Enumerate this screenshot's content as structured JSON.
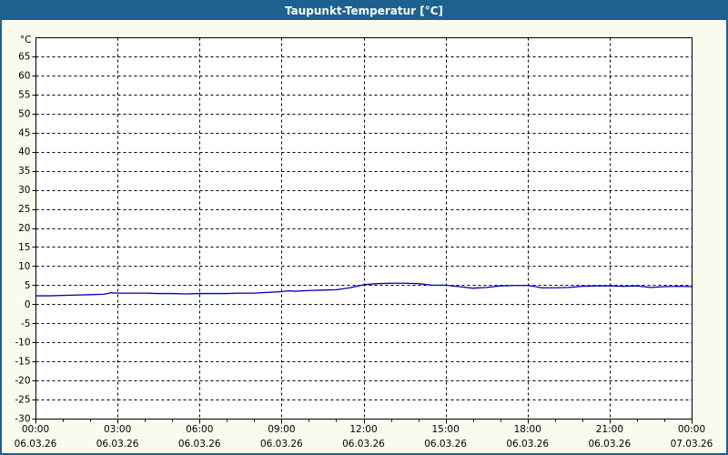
{
  "window": {
    "title": "Taupunkt-Temperatur [°C]"
  },
  "colors": {
    "titlebar_bg": "#1d6190",
    "titlebar_text": "#ffffff",
    "window_bg": "#fbfaee",
    "window_border": "#1d6190",
    "plot_bg": "#ffffff",
    "plot_border": "#000000",
    "grid": "#000000",
    "axis_text": "#000000",
    "line": "#0000b3"
  },
  "chart_data": {
    "type": "line",
    "title": "Taupunkt-Temperatur [°C]",
    "y_unit_label": "°C",
    "grid": "dashed",
    "legend": "none",
    "y_axis": {
      "min": -30,
      "max": 70,
      "tick_step": 5,
      "yticks": [
        -30,
        -25,
        -20,
        -15,
        -10,
        -5,
        0,
        5,
        10,
        15,
        20,
        25,
        30,
        35,
        40,
        45,
        50,
        55,
        60,
        65
      ]
    },
    "x_axis": {
      "min_hours": 0,
      "max_hours": 24,
      "minor_tick_step_hours": 1,
      "major_tick_step_hours": 3,
      "labels": [
        {
          "hour": 0,
          "time": "00:00",
          "date": "06.03.26"
        },
        {
          "hour": 3,
          "time": "03:00",
          "date": "06.03.26"
        },
        {
          "hour": 6,
          "time": "06:00",
          "date": "06.03.26"
        },
        {
          "hour": 9,
          "time": "09:00",
          "date": "06.03.26"
        },
        {
          "hour": 12,
          "time": "12:00",
          "date": "06.03.26"
        },
        {
          "hour": 15,
          "time": "15:00",
          "date": "06.03.26"
        },
        {
          "hour": 18,
          "time": "18:00",
          "date": "06.03.26"
        },
        {
          "hour": 21,
          "time": "21:00",
          "date": "06.03.26"
        },
        {
          "hour": 24,
          "time": "00:00",
          "date": "07.03.26"
        }
      ]
    },
    "series": [
      {
        "name": "Taupunkt-Temperatur",
        "color": "#0000b3",
        "x_hours": [
          0,
          0.5,
          1,
          1.5,
          2,
          2.5,
          2.75,
          3,
          3.5,
          4,
          4.5,
          5,
          5.5,
          6,
          6.5,
          7,
          7.5,
          8,
          8.5,
          9,
          9.25,
          9.5,
          10,
          10.5,
          11,
          11.5,
          12,
          12.5,
          13,
          13.5,
          14,
          14.5,
          15,
          15.5,
          16,
          16.5,
          17,
          17.5,
          18,
          18.3,
          18.5,
          19,
          19.5,
          20,
          20.5,
          21,
          21.5,
          22,
          22.5,
          23,
          23.5,
          24
        ],
        "values_c": [
          2.2,
          2.2,
          2.3,
          2.4,
          2.5,
          2.6,
          3.0,
          2.9,
          2.9,
          2.9,
          2.8,
          2.8,
          2.7,
          2.8,
          2.8,
          2.8,
          2.9,
          2.9,
          3.1,
          3.3,
          3.5,
          3.4,
          3.6,
          3.7,
          3.8,
          4.3,
          5.1,
          5.4,
          5.5,
          5.5,
          5.4,
          5.0,
          5.0,
          4.6,
          4.2,
          4.4,
          4.8,
          4.9,
          4.9,
          4.6,
          4.3,
          4.3,
          4.4,
          4.7,
          4.8,
          4.8,
          4.7,
          4.8,
          4.4,
          4.6,
          4.7,
          4.6
        ]
      }
    ]
  }
}
